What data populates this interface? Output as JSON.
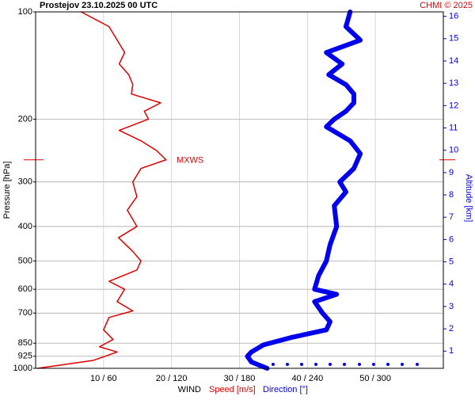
{
  "chart_data": {
    "type": "profile",
    "title": "Prostejov    23.10.2025 00 UTC",
    "credit": "CHMI © 2025",
    "ylabel": "Pressure [hPa]",
    "y2label": "Altitude [km]",
    "xlabel": "WIND",
    "legend": [
      "Speed [m/s]",
      "Direction [°]"
    ],
    "ylog": true,
    "ylim": [
      1000,
      100
    ],
    "yticks": [
      100,
      200,
      300,
      400,
      500,
      600,
      700,
      850,
      925,
      1000
    ],
    "y2lim": [
      0.23,
      16.2
    ],
    "y2ticks": [
      1,
      2,
      3,
      4,
      5,
      6,
      7,
      8,
      9,
      10,
      11,
      12,
      13,
      14,
      15,
      16
    ],
    "xlim": [
      0,
      60
    ],
    "x2lim": [
      0,
      360
    ],
    "xticks": [
      {
        "value": 10,
        "label": "10 / 60"
      },
      {
        "value": 20,
        "label": "20 / 120"
      },
      {
        "value": 30,
        "label": "30 / 180"
      },
      {
        "value": 40,
        "label": "40 / 240"
      },
      {
        "value": 50,
        "label": "50 / 300"
      }
    ],
    "grid": true,
    "annotation": {
      "text": "MXWS",
      "y": 260
    },
    "series": [
      {
        "name": "Speed [m/s]",
        "color": "#e00000",
        "axis": "x",
        "y": [
          100,
          110,
          120,
          130,
          140,
          150,
          160,
          170,
          180,
          190,
          200,
          215,
          230,
          245,
          260,
          275,
          300,
          330,
          360,
          400,
          430,
          470,
          500,
          530,
          570,
          600,
          650,
          690,
          720,
          780,
          830,
          870,
          900,
          950,
          1000
        ],
        "values": [
          6.7,
          10.8,
          12,
          13.1,
          12.3,
          13.7,
          14.3,
          14.1,
          18.4,
          16,
          16.6,
          12.3,
          15.5,
          17.8,
          19.2,
          15.5,
          14.3,
          14.9,
          13.5,
          14.9,
          12.2,
          14.3,
          15.5,
          14.9,
          10.8,
          13.1,
          12,
          14.3,
          10.8,
          10,
          11.4,
          9.4,
          12,
          8.5,
          0.3
        ]
      },
      {
        "name": "Direction [°]",
        "color": "#0000ee",
        "axis": "x2",
        "y": [
          100,
          110,
          120,
          130,
          140,
          150,
          160,
          170,
          180,
          190,
          200,
          210,
          230,
          250,
          275,
          300,
          320,
          350,
          400,
          450,
          500,
          550,
          600,
          620,
          650,
          700,
          740,
          780,
          820,
          860,
          900,
          925,
          960,
          1000
        ],
        "values": [
          277.7,
          274,
          286.7,
          256.7,
          270.7,
          258.8,
          274,
          281,
          281,
          274,
          263.7,
          256.7,
          277.7,
          286.7,
          281,
          268.6,
          274,
          263.7,
          265.8,
          260,
          256.7,
          249.8,
          246.3,
          265.8,
          246.3,
          253.3,
          260,
          256.7,
          225.3,
          201,
          190.5,
          187,
          190.5,
          204.4
        ]
      }
    ]
  }
}
